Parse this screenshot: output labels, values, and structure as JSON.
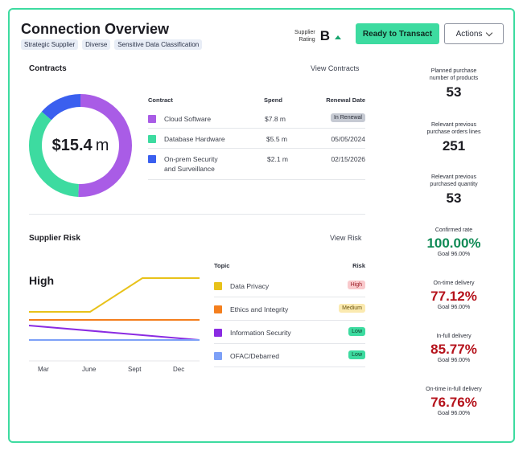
{
  "header": {
    "title": "Connection Overview",
    "tags": [
      "Strategic Supplier",
      "Diverse",
      "Sensitive Data Classification"
    ],
    "supplier_rating_label_line1": "Supplier",
    "supplier_rating_label_line2": "Rating",
    "supplier_rating": "B",
    "ready_button": "Ready to Transact",
    "actions_button": "Actions"
  },
  "contracts": {
    "title": "Contracts",
    "view_link": "View Contracts",
    "total_amount": "$15.4",
    "total_unit": "m",
    "columns": [
      "Contract",
      "Spend",
      "Renewal Date"
    ],
    "rows": [
      {
        "name_line1": "Cloud Software",
        "name_line2": "",
        "spend": "$7.8 m",
        "renewal": "In Renewal",
        "color": "#a95ce6"
      },
      {
        "name_line1": "Database Hardware",
        "name_line2": "",
        "spend": "$5.5 m",
        "renewal": "05/05/2024",
        "color": "#3ddba0"
      },
      {
        "name_line1": "On-prem Security",
        "name_line2": "and Surveillance",
        "spend": "$2.1 m",
        "renewal": "02/15/2026",
        "color": "#3a5fef"
      }
    ],
    "donut_values": [
      7.8,
      5.5,
      2.1
    ]
  },
  "risk": {
    "title": "Supplier Risk",
    "view_link": "View Risk",
    "level": "High",
    "x_ticks": [
      "Mar",
      "June",
      "Sept",
      "Dec"
    ],
    "columns": [
      "Topic",
      "Risk"
    ],
    "rows": [
      {
        "topic": "Data Privacy",
        "risk": "High",
        "color": "#e8c21a",
        "badge_bg": "#f9c9cc",
        "badge_fg": "#9a1c25"
      },
      {
        "topic": "Ethics and Integrity",
        "risk": "Medium",
        "color": "#f47f1e",
        "badge_bg": "#fbeab0",
        "badge_fg": "#6b5410"
      },
      {
        "topic": "Information Security",
        "risk": "Low",
        "color": "#8a2be2",
        "badge_bg": "#3ddba0",
        "badge_fg": "#0f3a27"
      },
      {
        "topic": "OFAC/Debarred",
        "risk": "Low",
        "color": "#7da0f7",
        "badge_bg": "#3ddba0",
        "badge_fg": "#0f3a27"
      }
    ]
  },
  "metrics": [
    {
      "label_line1": "Planned purchase",
      "label_line2": "number of products",
      "value": "53",
      "goal": "",
      "value_color": "#1c1c22"
    },
    {
      "label_line1": "Relevant previous",
      "label_line2": "purchase orders lines",
      "value": "251",
      "goal": "",
      "value_color": "#1c1c22"
    },
    {
      "label_line1": "Relevant previous",
      "label_line2": "purchased quantity",
      "value": "53",
      "goal": "",
      "value_color": "#1c1c22"
    },
    {
      "label_line1": "Confirmed rate",
      "label_line2": "",
      "value": "100.00%",
      "goal": "Goal 96.00%",
      "value_color": "#0f8a55"
    },
    {
      "label_line1": "On-time delivery",
      "label_line2": "",
      "value": "77.12%",
      "goal": "Goal 96.00%",
      "value_color": "#b5121b"
    },
    {
      "label_line1": "In-full delivery",
      "label_line2": "",
      "value": "85.77%",
      "goal": "Goal 96.00%",
      "value_color": "#b5121b"
    },
    {
      "label_line1": "On-time in-full delivery",
      "label_line2": "",
      "value": "76.76%",
      "goal": "Goal 96.00%",
      "value_color": "#b5121b"
    }
  ]
}
